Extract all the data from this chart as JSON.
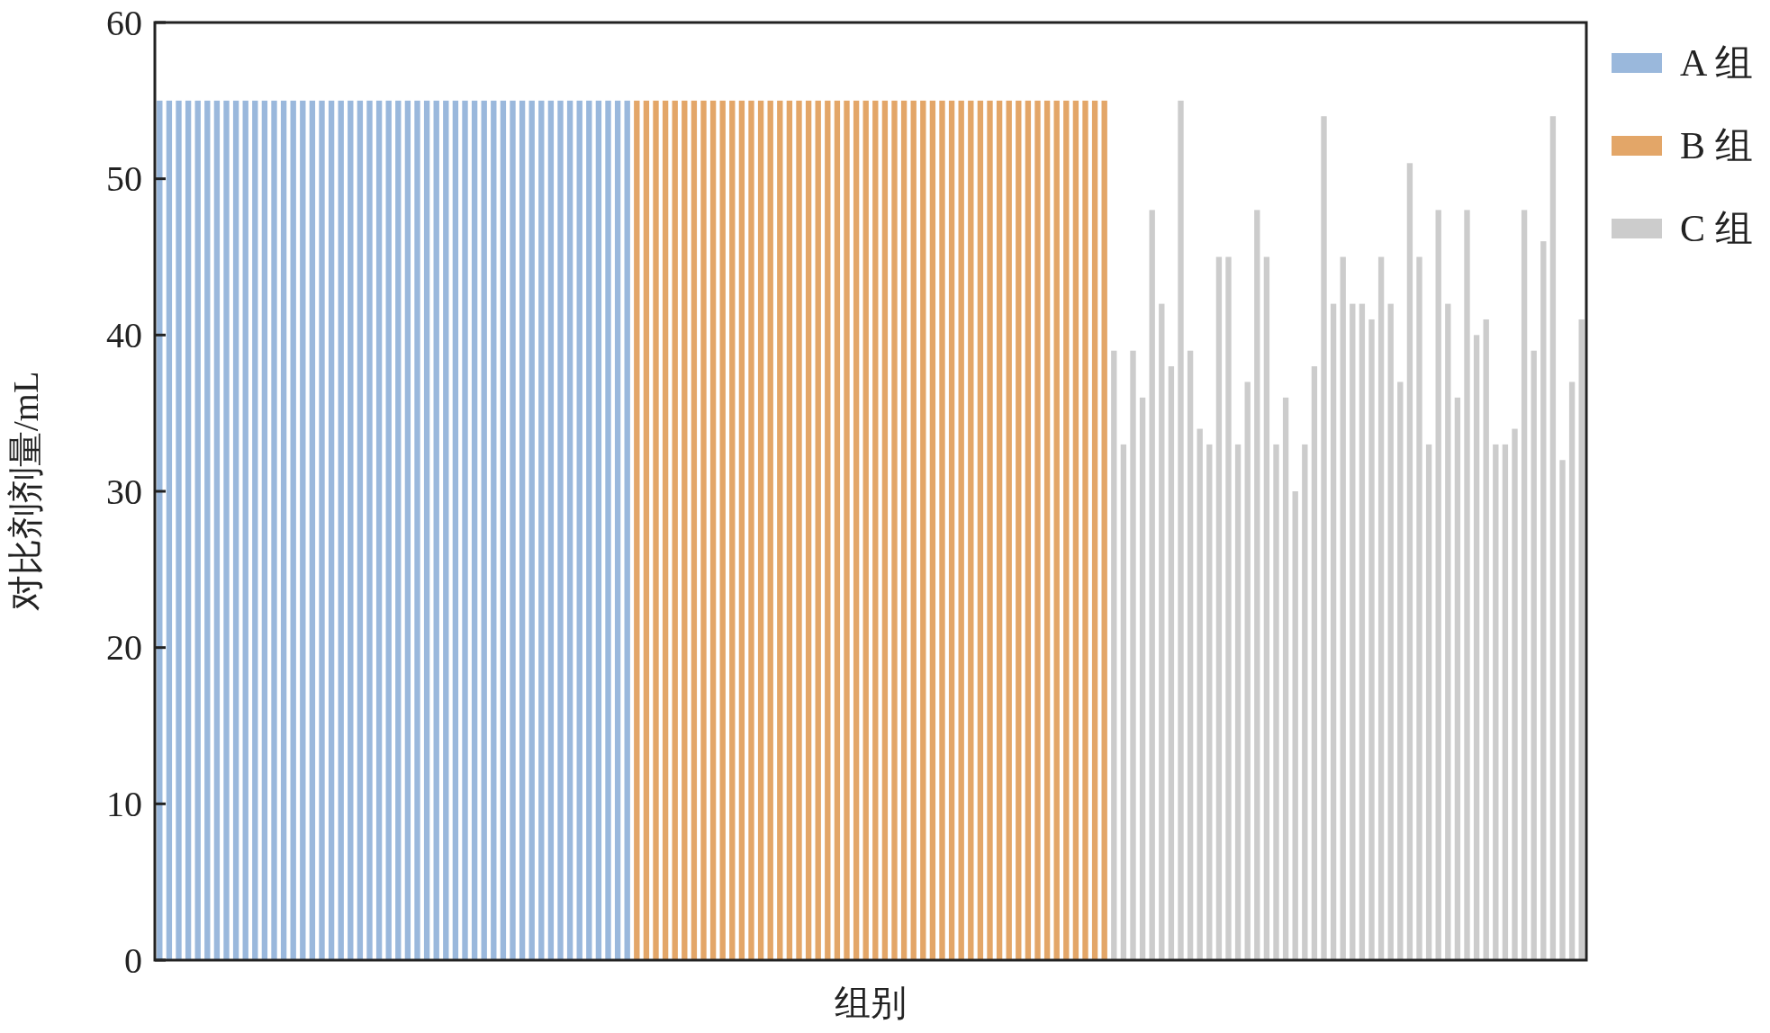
{
  "chart_data": {
    "type": "bar",
    "xlabel": "组别",
    "ylabel": "对比剂剂量/mL",
    "stacked": true,
    "categories": [
      null,
      null,
      null,
      null,
      null,
      null,
      null,
      null,
      null,
      null,
      null,
      null,
      null,
      null,
      null,
      null,
      null,
      null,
      null,
      null,
      null,
      null,
      null,
      null,
      null,
      null,
      null,
      null,
      null,
      null,
      null,
      null,
      null,
      null,
      null,
      null,
      null,
      null,
      null,
      null,
      null,
      null,
      null,
      null,
      null,
      null,
      null,
      null,
      null,
      null,
      null,
      null,
      null,
      null,
      null,
      null,
      null,
      null,
      null,
      null,
      null,
      null,
      null,
      null,
      null,
      null,
      null,
      null,
      null,
      null,
      null,
      null,
      null,
      null,
      null,
      null,
      null,
      null,
      null,
      null,
      null,
      null,
      null,
      null,
      null,
      null,
      null,
      null,
      null,
      null,
      null,
      null,
      null,
      null,
      null,
      null,
      null,
      null,
      null,
      null,
      null,
      null,
      null,
      null,
      null,
      null,
      null,
      null,
      null,
      null,
      null,
      null,
      null,
      null,
      null,
      null,
      null,
      null,
      null,
      null,
      null,
      null,
      null,
      null,
      null,
      null,
      null,
      null,
      null,
      null,
      null,
      null,
      null,
      null,
      null,
      null,
      null,
      null,
      null,
      null,
      null,
      null,
      null,
      null,
      null,
      null,
      null,
      null,
      null,
      null
    ],
    "series": [
      {
        "name": "A 组",
        "color": "#9ab8dc",
        "values": [
          55,
          55,
          55,
          55,
          55,
          55,
          55,
          55,
          55,
          55,
          55,
          55,
          55,
          55,
          55,
          55,
          55,
          55,
          55,
          55,
          55,
          55,
          55,
          55,
          55,
          55,
          55,
          55,
          55,
          55,
          55,
          55,
          55,
          55,
          55,
          55,
          55,
          55,
          55,
          55,
          55,
          55,
          55,
          55,
          55,
          55,
          55,
          55,
          55,
          55,
          null,
          null,
          null,
          null,
          null,
          null,
          null,
          null,
          null,
          null,
          null,
          null,
          null,
          null,
          null,
          null,
          null,
          null,
          null,
          null,
          null,
          null,
          null,
          null,
          null,
          null,
          null,
          null,
          null,
          null,
          null,
          null,
          null,
          null,
          null,
          null,
          null,
          null,
          null,
          null,
          null,
          null,
          null,
          null,
          null,
          null,
          null,
          null,
          null,
          null,
          null,
          null,
          null,
          null,
          null,
          null,
          null,
          null,
          null,
          null,
          null,
          null,
          null,
          null,
          null,
          null,
          null,
          null,
          null,
          null,
          null,
          null,
          null,
          null,
          null,
          null,
          null,
          null,
          null,
          null,
          null,
          null,
          null,
          null,
          null,
          null,
          null,
          null,
          null,
          null,
          null,
          null,
          null,
          null,
          null,
          null,
          null,
          null,
          null,
          null
        ]
      },
      {
        "name": "B 组",
        "color": "#e3a668",
        "values": [
          null,
          null,
          null,
          null,
          null,
          null,
          null,
          null,
          null,
          null,
          null,
          null,
          null,
          null,
          null,
          null,
          null,
          null,
          null,
          null,
          null,
          null,
          null,
          null,
          null,
          null,
          null,
          null,
          null,
          null,
          null,
          null,
          null,
          null,
          null,
          null,
          null,
          null,
          null,
          null,
          null,
          null,
          null,
          null,
          null,
          null,
          null,
          null,
          null,
          null,
          55,
          55,
          55,
          55,
          55,
          55,
          55,
          55,
          55,
          55,
          55,
          55,
          55,
          55,
          55,
          55,
          55,
          55,
          55,
          55,
          55,
          55,
          55,
          55,
          55,
          55,
          55,
          55,
          55,
          55,
          55,
          55,
          55,
          55,
          55,
          55,
          55,
          55,
          55,
          55,
          55,
          55,
          55,
          55,
          55,
          55,
          55,
          55,
          55,
          55,
          null,
          null,
          null,
          null,
          null,
          null,
          null,
          null,
          null,
          null,
          null,
          null,
          null,
          null,
          null,
          null,
          null,
          null,
          null,
          null,
          null,
          null,
          null,
          null,
          null,
          null,
          null,
          null,
          null,
          null,
          null,
          null,
          null,
          null,
          null,
          null,
          null,
          null,
          null,
          null,
          null,
          null,
          null,
          null,
          null,
          null,
          null,
          null,
          null,
          null
        ]
      },
      {
        "name": "C 组",
        "color": "#cccccc",
        "values": [
          null,
          null,
          null,
          null,
          null,
          null,
          null,
          null,
          null,
          null,
          null,
          null,
          null,
          null,
          null,
          null,
          null,
          null,
          null,
          null,
          null,
          null,
          null,
          null,
          null,
          null,
          null,
          null,
          null,
          null,
          null,
          null,
          null,
          null,
          null,
          null,
          null,
          null,
          null,
          null,
          null,
          null,
          null,
          null,
          null,
          null,
          null,
          null,
          null,
          null,
          null,
          null,
          null,
          null,
          null,
          null,
          null,
          null,
          null,
          null,
          null,
          null,
          null,
          null,
          null,
          null,
          null,
          null,
          null,
          null,
          null,
          null,
          null,
          null,
          null,
          null,
          null,
          null,
          null,
          null,
          null,
          null,
          null,
          null,
          null,
          null,
          null,
          null,
          null,
          null,
          null,
          null,
          null,
          null,
          null,
          null,
          null,
          null,
          null,
          null,
          39,
          33,
          39,
          36,
          48,
          42,
          38,
          55,
          39,
          34,
          33,
          45,
          45,
          33,
          37,
          48,
          45,
          33,
          36,
          30,
          33,
          38,
          54,
          42,
          45,
          42,
          42,
          41,
          45,
          42,
          37,
          51,
          45,
          33,
          48,
          42,
          36,
          48,
          40,
          41,
          33,
          33,
          34,
          48,
          39,
          46,
          54,
          32,
          37,
          41
        ]
      }
    ],
    "ylim": [
      0,
      60
    ],
    "yticks": [
      0,
      10,
      20,
      30,
      40,
      50,
      60
    ],
    "grid": false,
    "legend": "top right"
  }
}
